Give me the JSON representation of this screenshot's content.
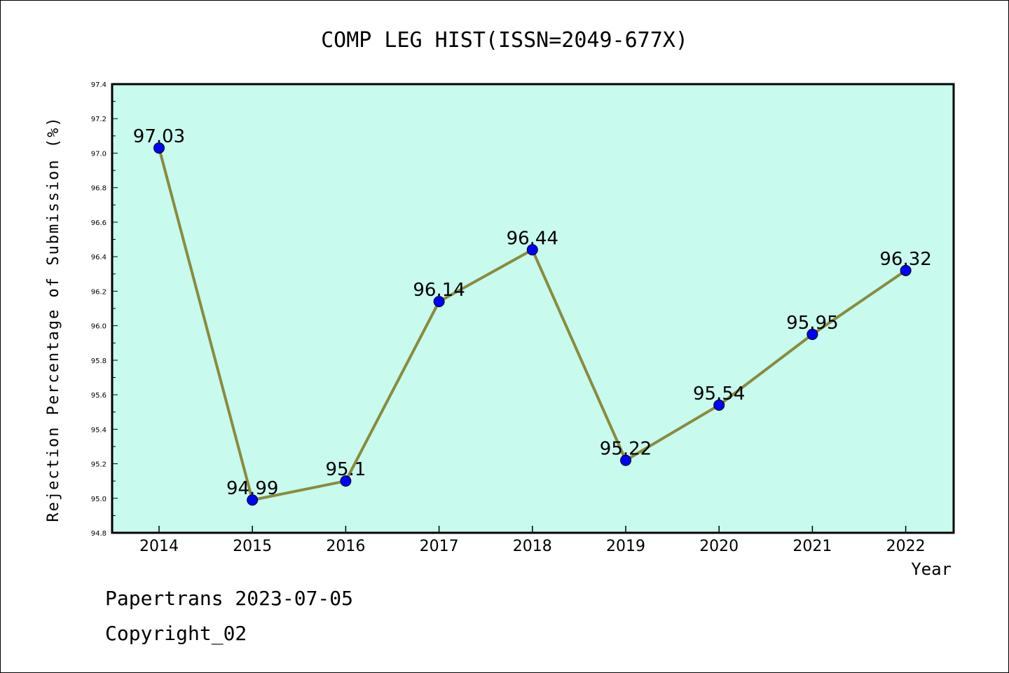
{
  "chart_data": {
    "type": "line",
    "title": "COMP LEG HIST(ISSN=2049-677X)",
    "xlabel": "Year",
    "ylabel": "Rejection Percentage of Submission (%)",
    "categories": [
      "2014",
      "2015",
      "2016",
      "2017",
      "2018",
      "2019",
      "2020",
      "2021",
      "2022"
    ],
    "series": [
      {
        "values": [
          97.03,
          94.99,
          95.1,
          96.14,
          96.44,
          95.22,
          95.54,
          95.95,
          96.32
        ]
      }
    ],
    "data_labels": [
      "97.03",
      "94.99",
      "95.1",
      "96.14",
      "96.44",
      "95.22",
      "95.54",
      "95.95",
      "96.32"
    ],
    "ylim": [
      94.8,
      97.4
    ],
    "yticks": [
      "94.8",
      "95.0",
      "95.2",
      "95.4",
      "95.6",
      "95.8",
      "96.0",
      "96.2",
      "96.4",
      "96.6",
      "96.8",
      "97.0",
      "97.2",
      "97.4"
    ],
    "grid": false,
    "colors": {
      "plot_background": "#c8faee",
      "line": "#8b8b3c",
      "marker": "#0000ff"
    }
  },
  "footer": {
    "line1": "Papertrans 2023-07-05",
    "line2": "Copyright_02"
  }
}
